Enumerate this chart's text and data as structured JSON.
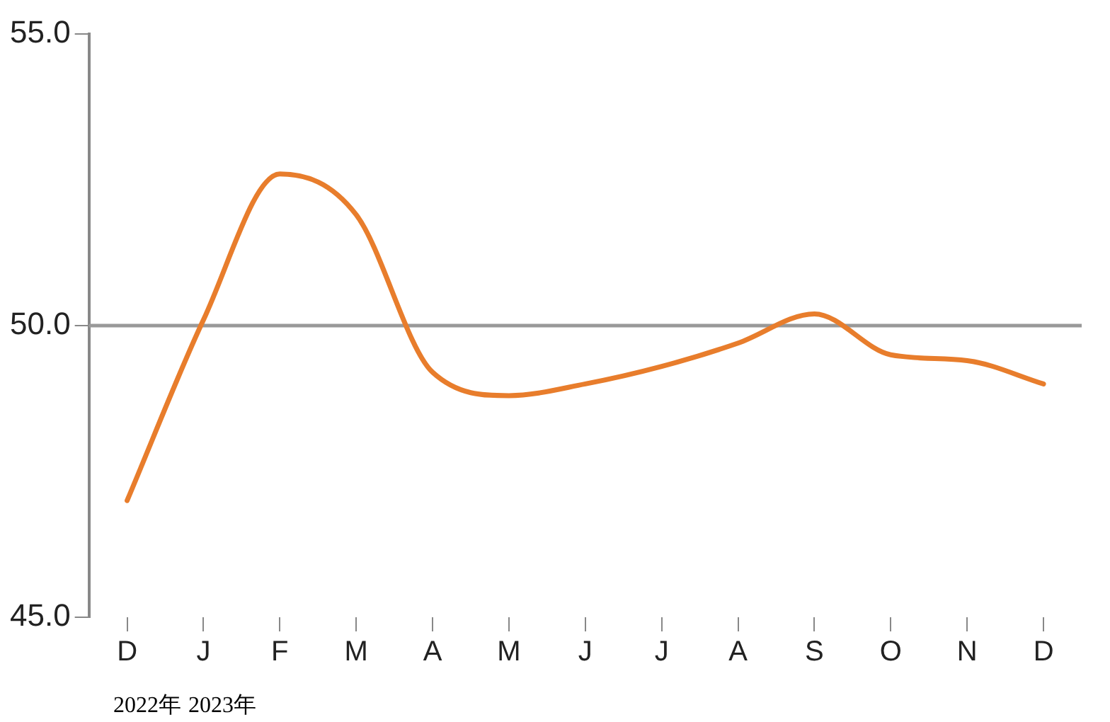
{
  "chart_data": {
    "type": "line",
    "categories": [
      "D",
      "J",
      "F",
      "M",
      "A",
      "M",
      "J",
      "J",
      "A",
      "S",
      "O",
      "N",
      "D"
    ],
    "series": [
      {
        "color": "#e87d2c",
        "values": [
          47.0,
          50.1,
          52.6,
          51.9,
          49.2,
          48.8,
          49.0,
          49.3,
          49.7,
          50.2,
          49.5,
          49.4,
          49.0
        ]
      }
    ],
    "ylim": [
      45,
      55
    ],
    "yticks": [
      {
        "value": 45,
        "label": "45.0"
      },
      {
        "value": 50,
        "label": "50.0"
      },
      {
        "value": 55,
        "label": "55.0"
      }
    ],
    "ref_lines": [
      {
        "axis": "y",
        "value": 50,
        "color": "#999999"
      }
    ],
    "marker": "none",
    "line_style": "solid",
    "legend": false,
    "grid": false,
    "annotations": [
      "2022年",
      "2023年"
    ]
  }
}
